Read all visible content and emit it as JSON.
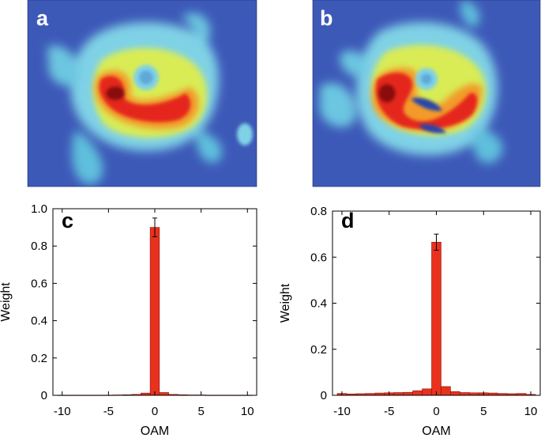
{
  "figure_labels": {
    "a": "a",
    "b": "b",
    "c": "c",
    "d": "d"
  },
  "colors": {
    "bar_fill": "#e8321e",
    "bar_edge": "#8a1208",
    "map_bg": "#3d59b8",
    "axis": "#000000"
  },
  "chart_data": [
    {
      "id": "c",
      "type": "bar",
      "title": "",
      "xlabel": "OAM",
      "ylabel": "Weight",
      "xlim": [
        -11,
        11
      ],
      "ylim": [
        0,
        1.0
      ],
      "xticks": [
        -10,
        -5,
        0,
        5,
        10
      ],
      "xtick_labels": [
        "-10",
        "-5",
        "0",
        "5",
        "10"
      ],
      "yticks": [
        0,
        0.2,
        0.4,
        0.6,
        0.8,
        1.0
      ],
      "ytick_labels": [
        "0",
        "0.2",
        "0.4",
        "0.6",
        "0.8",
        "1.0"
      ],
      "x": [
        -10,
        -9,
        -8,
        -7,
        -6,
        -5,
        -4,
        -3,
        -2,
        -1,
        0,
        1,
        2,
        3,
        4,
        5,
        6,
        7,
        8,
        9,
        10
      ],
      "values": [
        0.001,
        0.001,
        0.001,
        0.001,
        0.001,
        0.001,
        0.002,
        0.003,
        0.005,
        0.012,
        0.9,
        0.015,
        0.005,
        0.003,
        0.002,
        0.002,
        0.001,
        0.001,
        0.001,
        0.001,
        0.001
      ],
      "error_bars": [
        {
          "x": 0,
          "value": 0.9,
          "err": 0.05
        }
      ]
    },
    {
      "id": "d",
      "type": "bar",
      "title": "",
      "xlabel": "OAM",
      "ylabel": "Weight",
      "xlim": [
        -11,
        11
      ],
      "ylim": [
        0,
        0.8
      ],
      "xticks": [
        -10,
        -5,
        0,
        5,
        10
      ],
      "xtick_labels": [
        "-10",
        "-5",
        "0",
        "5",
        "10"
      ],
      "yticks": [
        0,
        0.2,
        0.4,
        0.6,
        0.8
      ],
      "ytick_labels": [
        "0",
        "0.2",
        "0.4",
        "0.6",
        "0.8"
      ],
      "x": [
        -10,
        -9,
        -8,
        -7,
        -6,
        -5,
        -4,
        -3,
        -2,
        -1,
        0,
        1,
        2,
        3,
        4,
        5,
        6,
        7,
        8,
        9,
        10
      ],
      "values": [
        0.008,
        0.006,
        0.007,
        0.008,
        0.01,
        0.011,
        0.012,
        0.013,
        0.02,
        0.028,
        0.665,
        0.038,
        0.016,
        0.012,
        0.011,
        0.011,
        0.01,
        0.008,
        0.007,
        0.008,
        0.004
      ],
      "error_bars": [
        {
          "x": 0,
          "value": 0.665,
          "err": 0.035
        }
      ]
    }
  ]
}
